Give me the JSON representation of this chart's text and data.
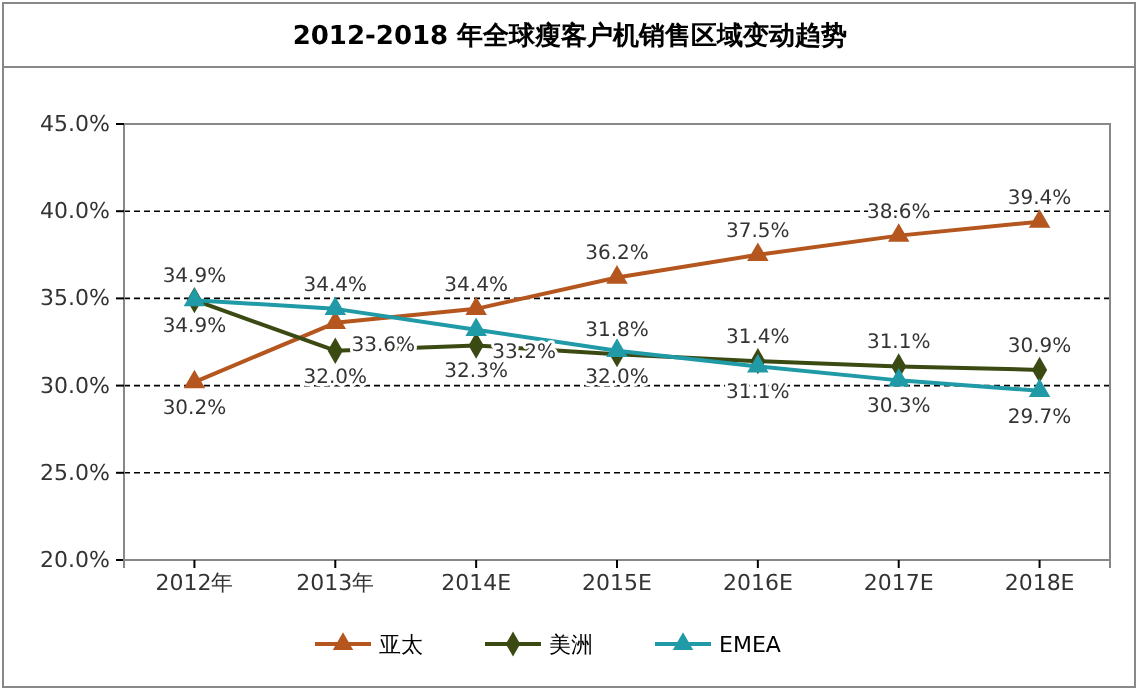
{
  "chart_data": {
    "type": "line",
    "title": "2012-2018 年全球瘦客户机销售区域变动趋势",
    "categories": [
      "2012年",
      "2013年",
      "2014E",
      "2015E",
      "2016E",
      "2017E",
      "2018E"
    ],
    "series": [
      {
        "name": "亚太",
        "color": "#b4561e",
        "marker": "triangle",
        "values": [
          30.2,
          33.6,
          34.4,
          36.2,
          37.5,
          38.6,
          39.4
        ],
        "value_labels": [
          "30.2%",
          "33.6%",
          "34.4%",
          "36.2%",
          "37.5%",
          "38.6%",
          "39.4%"
        ]
      },
      {
        "name": "美洲",
        "color": "#3b4a12",
        "marker": "diamond",
        "values": [
          34.9,
          32.0,
          32.3,
          31.8,
          31.4,
          31.1,
          30.9
        ],
        "value_labels": [
          "34.9%",
          "32.0%",
          "32.3%",
          "31.8%",
          "31.4%",
          "31.1%",
          "30.9%"
        ]
      },
      {
        "name": "EMEA",
        "color": "#1f9aa6",
        "marker": "triangle",
        "values": [
          34.9,
          34.4,
          33.2,
          32.0,
          31.1,
          30.3,
          29.7
        ],
        "value_labels": [
          "34.9%",
          "34.4%",
          "33.2%",
          "32.0%",
          "31.1%",
          "30.3%",
          "29.7%"
        ]
      }
    ],
    "ylim": [
      20,
      45
    ],
    "yticks": [
      {
        "value": 20,
        "label": "20.0%"
      },
      {
        "value": 25,
        "label": "25.0%"
      },
      {
        "value": 30,
        "label": "30.0%"
      },
      {
        "value": 35,
        "label": "35.0%"
      },
      {
        "value": 40,
        "label": "40.0%"
      },
      {
        "value": 45,
        "label": "45.0%"
      }
    ],
    "grid": "y",
    "legend": "bottom"
  }
}
